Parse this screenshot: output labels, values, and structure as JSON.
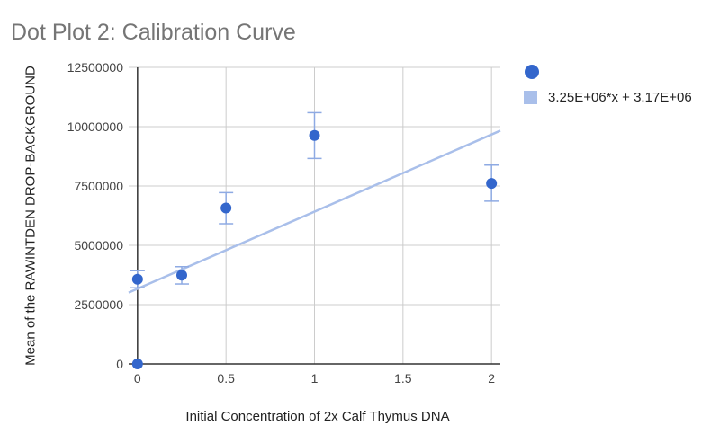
{
  "chart_data": {
    "type": "scatter",
    "title": "Dot Plot 2: Calibration Curve",
    "xlabel": "Initial Concentration of 2x Calf Thymus DNA",
    "ylabel": "Mean of the RAWINTDEN DROP-BACKGROUND",
    "xlim": [
      -0.05,
      2.05
    ],
    "ylim": [
      0,
      12500000
    ],
    "xticks": [
      0,
      0.5,
      1,
      1.5,
      2
    ],
    "xtick_labels": [
      "0",
      "0.5",
      "1",
      "1.5",
      "2"
    ],
    "yticks": [
      0,
      2500000,
      5000000,
      7500000,
      10000000,
      12500000
    ],
    "ytick_labels": [
      "0",
      "2500000",
      "5000000",
      "7500000",
      "10000000",
      "12500000"
    ],
    "grid": true,
    "legend_position": "right",
    "colors": {
      "points": "#3366cc",
      "trendline": "#a9bfea",
      "error_bars": "#8eaae3"
    },
    "points": [
      {
        "x": 0,
        "y": 0
      },
      {
        "x": 0,
        "y": 3570000,
        "err_low": 3210000,
        "err_high": 3930000
      },
      {
        "x": 0.25,
        "y": 3740000,
        "err_low": 3370000,
        "err_high": 4100000
      },
      {
        "x": 0.5,
        "y": 6570000,
        "err_low": 5910000,
        "err_high": 7220000
      },
      {
        "x": 1,
        "y": 9630000,
        "err_low": 8660000,
        "err_high": 10590000
      },
      {
        "x": 2,
        "y": 7610000,
        "err_low": 6860000,
        "err_high": 8380000
      }
    ],
    "trendline": {
      "slope": 3250000,
      "intercept": 3170000,
      "label": "3.25E+06*x + 3.17E+06"
    }
  }
}
